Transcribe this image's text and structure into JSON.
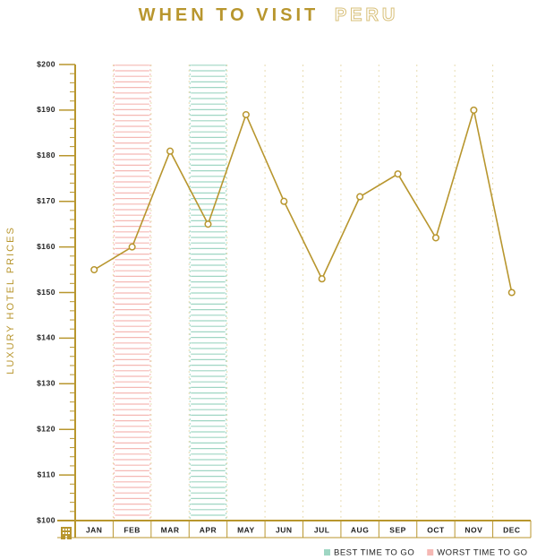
{
  "chart_data": {
    "type": "line",
    "title": "WHEN TO VISIT",
    "title_highlight": "PERU",
    "y_label": "LUXURY HOTEL PRICES",
    "categories": [
      "JAN",
      "FEB",
      "MAR",
      "APR",
      "MAY",
      "JUN",
      "JUL",
      "AUG",
      "SEP",
      "OCT",
      "NOV",
      "DEC"
    ],
    "series": [
      {
        "name": "Luxury hotel prices",
        "color": "#b8962e",
        "values": [
          155,
          160,
          181,
          165,
          189,
          170,
          153,
          171,
          176,
          162,
          190,
          150
        ]
      }
    ],
    "ylim": [
      100,
      200
    ],
    "yticks": [
      {
        "value": 100,
        "label": "$100"
      },
      {
        "value": 110,
        "label": "$110"
      },
      {
        "value": 120,
        "label": "$120"
      },
      {
        "value": 130,
        "label": "$130"
      },
      {
        "value": 140,
        "label": "$140"
      },
      {
        "value": 150,
        "label": "$150"
      },
      {
        "value": 160,
        "label": "$160"
      },
      {
        "value": 170,
        "label": "$170"
      },
      {
        "value": 180,
        "label": "$180"
      },
      {
        "value": 190,
        "label": "$190"
      },
      {
        "value": 200,
        "label": "$200"
      }
    ],
    "highlights": [
      {
        "name": "BEST TIME TO GO",
        "color": "#9fd6c3",
        "categories": [
          "APR"
        ]
      },
      {
        "name": "WORST TIME TO GO",
        "color": "#f5b8b4",
        "categories": [
          "FEB"
        ]
      }
    ],
    "grid": true
  }
}
